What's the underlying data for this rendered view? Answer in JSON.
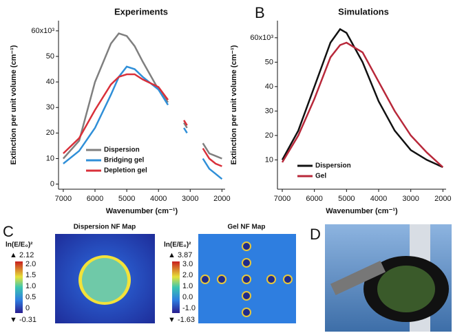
{
  "chart_data": [
    {
      "type": "line",
      "title": "Experiments",
      "x_label": "Wavenumber (cm⁻¹)",
      "y_label": "Extinction per unit volume (cm⁻¹)",
      "x": [
        7000,
        6500,
        6000,
        5500,
        5250,
        5000,
        4750,
        4500,
        4000,
        3700,
        3500,
        3200,
        3100,
        2900,
        2600,
        2400,
        2200,
        2000
      ],
      "series": [
        {
          "name": "Dispersion",
          "color": "#7f7f7f",
          "values": [
            10,
            17,
            40,
            55,
            59,
            58,
            54,
            48,
            37,
            32,
            null,
            24,
            22,
            null,
            16,
            12,
            11,
            10
          ]
        },
        {
          "name": "Bridging gel",
          "color": "#2f8fd8",
          "values": [
            8,
            13,
            22,
            35,
            42,
            46,
            45,
            42,
            37,
            31,
            null,
            22,
            20,
            null,
            10,
            6,
            4,
            2
          ]
        },
        {
          "name": "Depletion gel",
          "color": "#d9303a",
          "values": [
            12,
            18,
            29,
            39,
            42,
            43,
            43,
            41,
            38,
            33,
            null,
            25,
            23,
            null,
            14,
            10,
            8,
            7
          ]
        }
      ],
      "xlim": [
        7150,
        1900
      ],
      "xticks": [
        7000,
        6000,
        5000,
        4000,
        3000,
        2000
      ],
      "ylim": [
        -2,
        64
      ],
      "yticks": [
        0,
        10,
        20,
        30,
        40,
        50,
        {
          "value": 60,
          "label": "60x10³"
        }
      ],
      "legend": "lower left"
    },
    {
      "type": "line",
      "title": "Simulations",
      "x_label": "Wavenumber (cm⁻¹)",
      "y_label": "Extinction per unit volume (cm⁻¹)",
      "x": [
        7000,
        6500,
        6000,
        5500,
        5200,
        5000,
        4500,
        4000,
        3500,
        3000,
        2500,
        2000
      ],
      "series": [
        {
          "name": "Dispersion",
          "color": "#111111",
          "values": [
            10,
            22,
            40,
            58,
            63.5,
            62,
            50,
            34,
            22,
            14,
            10,
            7
          ]
        },
        {
          "name": "Gel",
          "color": "#b8283a",
          "values": [
            9,
            20,
            35,
            52,
            57,
            58,
            54,
            42,
            30,
            20,
            13,
            7
          ]
        }
      ],
      "xlim": [
        7150,
        1900
      ],
      "xticks": [
        7000,
        6000,
        5000,
        4000,
        3000,
        2000
      ],
      "ylim": [
        -2,
        67
      ],
      "yticks": [
        10,
        20,
        30,
        40,
        50,
        {
          "value": 60,
          "label": "60x10³"
        }
      ],
      "legend": "lower left"
    }
  ],
  "panel_labels": [
    "B",
    "C",
    "D"
  ],
  "maps": [
    {
      "title": "Dispersion NF Map",
      "colorbar_label": "ln(E/E₀)²",
      "max_label": "▲ 2.12",
      "ticks": [
        "2.0",
        "1.5",
        "1.0",
        "0.5",
        "0"
      ],
      "min_label": "▼ -0.31"
    },
    {
      "title": "Gel NF Map",
      "colorbar_label": "ln(E/E₀)²",
      "max_label": "▲ 3.87",
      "ticks": [
        "3.0",
        "2.0",
        "1.0",
        "0.0",
        "-1.0"
      ],
      "min_label": "▼ -1.63"
    }
  ]
}
